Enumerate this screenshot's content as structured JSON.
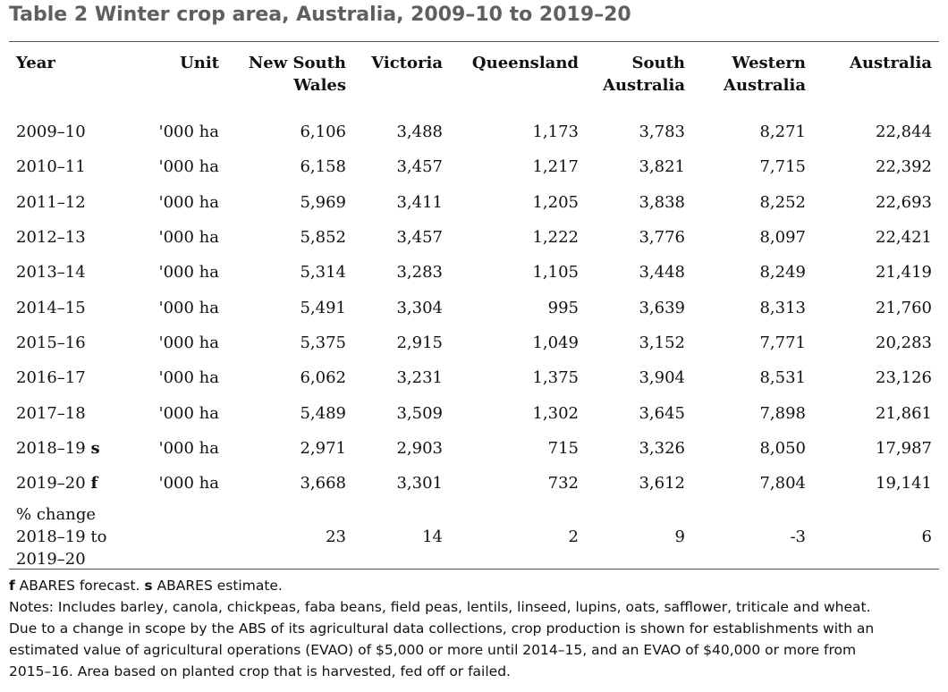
{
  "title": "Table 2 Winter crop area, Australia, 2009–10 to 2019–20",
  "columns": [
    "Year",
    "Unit",
    "New South Wales",
    "Victoria",
    "Queensland",
    "South Australia",
    "Western Australia",
    "Australia"
  ],
  "rows": [
    {
      "year": "2009–10",
      "unit": "'000 ha",
      "nsw": "6,106",
      "vic": "3,488",
      "qld": "1,173",
      "sa": "3,783",
      "wa": "8,271",
      "aus": "22,844"
    },
    {
      "year": "2010–11",
      "unit": "'000 ha",
      "nsw": "6,158",
      "vic": "3,457",
      "qld": "1,217",
      "sa": "3,821",
      "wa": "7,715",
      "aus": "22,392"
    },
    {
      "year": "2011–12",
      "unit": "'000 ha",
      "nsw": "5,969",
      "vic": "3,411",
      "qld": "1,205",
      "sa": "3,838",
      "wa": "8,252",
      "aus": "22,693"
    },
    {
      "year": "2012–13",
      "unit": "'000 ha",
      "nsw": "5,852",
      "vic": "3,457",
      "qld": "1,222",
      "sa": "3,776",
      "wa": "8,097",
      "aus": "22,421"
    },
    {
      "year": "2013–14",
      "unit": "'000 ha",
      "nsw": "5,314",
      "vic": "3,283",
      "qld": "1,105",
      "sa": "3,448",
      "wa": "8,249",
      "aus": "21,419"
    },
    {
      "year": "2014–15",
      "unit": "'000 ha",
      "nsw": "5,491",
      "vic": "3,304",
      "qld": "995",
      "sa": "3,639",
      "wa": "8,313",
      "aus": "21,760"
    },
    {
      "year": "2015–16",
      "unit": "'000 ha",
      "nsw": "5,375",
      "vic": "2,915",
      "qld": "1,049",
      "sa": "3,152",
      "wa": "7,771",
      "aus": "20,283"
    },
    {
      "year": "2016–17",
      "unit": "'000 ha",
      "nsw": "6,062",
      "vic": "3,231",
      "qld": "1,375",
      "sa": "3,904",
      "wa": "8,531",
      "aus": "23,126"
    },
    {
      "year": "2017–18",
      "unit": "'000 ha",
      "nsw": "5,489",
      "vic": "3,509",
      "qld": "1,302",
      "sa": "3,645",
      "wa": "7,898",
      "aus": "21,861"
    },
    {
      "year": "2018–19",
      "suffix": "s",
      "unit": "'000 ha",
      "nsw": "2,971",
      "vic": "2,903",
      "qld": "715",
      "sa": "3,326",
      "wa": "8,050",
      "aus": "17,987"
    },
    {
      "year": "2019–20",
      "suffix": "f",
      "unit": "'000 ha",
      "nsw": "3,668",
      "vic": "3,301",
      "qld": "732",
      "sa": "3,612",
      "wa": "7,804",
      "aus": "19,141"
    }
  ],
  "change_row": {
    "label_lines": [
      "% change",
      "2018–19 to",
      "2019–20"
    ],
    "unit": "",
    "nsw": "23",
    "vic": "14",
    "qld": "2",
    "sa": "9",
    "wa": "-3",
    "aus": "6"
  },
  "notes": {
    "f_key": "f",
    "f_text": " ABARES forecast. ",
    "s_key": "s",
    "s_text": " ABARES estimate.",
    "line2": "Notes: Includes barley, canola, chickpeas, faba beans, field peas, lentils, linseed, lupins, oats, safflower, triticale and wheat.",
    "line3": "Due to a change in scope by the ABS of its agricultural data collections, crop production is shown for establishments with an",
    "line4": "estimated value of agricultural operations (EVAO) of $5,000 or more until 2014–15, and an EVAO of $40,000 or more from",
    "line5": "2015–16. Area based on planted crop that is harvested, fed off or failed."
  }
}
